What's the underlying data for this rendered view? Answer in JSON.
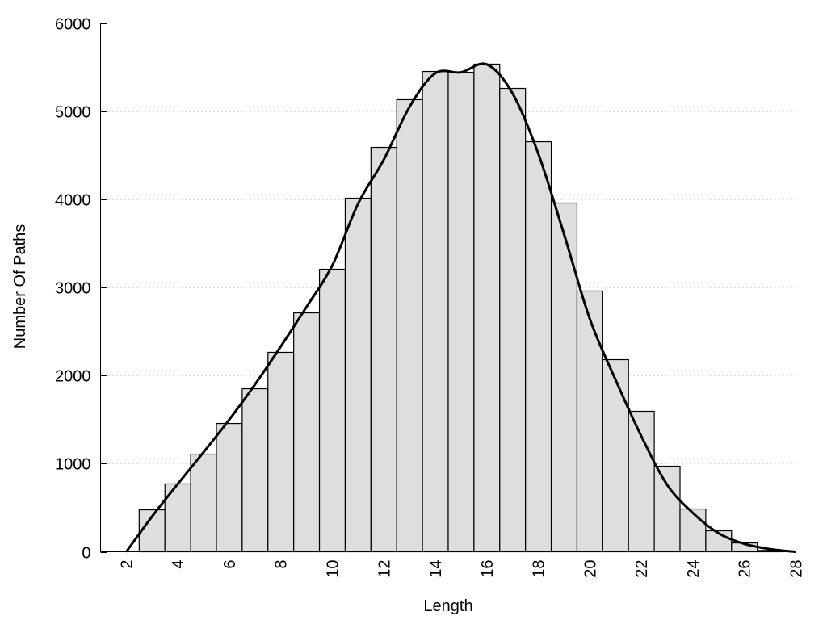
{
  "chart_data": {
    "type": "bar",
    "title": "",
    "xlabel": "Length",
    "ylabel": "Number Of Paths",
    "xlim": [
      1,
      28
    ],
    "ylim": [
      0,
      6000
    ],
    "xticks": [
      2,
      4,
      6,
      8,
      10,
      12,
      14,
      16,
      18,
      20,
      22,
      24,
      26,
      28
    ],
    "yticks": [
      0,
      1000,
      2000,
      3000,
      4000,
      5000,
      6000
    ],
    "grid": "horizontal dotted",
    "bar_color": "#dedede",
    "line_color": "#000000",
    "x": [
      3,
      4,
      5,
      6,
      7,
      8,
      9,
      10,
      11,
      12,
      13,
      14,
      15,
      16,
      17,
      18,
      19,
      20,
      21,
      22,
      23,
      24,
      25,
      26,
      27
    ],
    "values": [
      476,
      770,
      1108,
      1456,
      1850,
      2263,
      2711,
      3206,
      4012,
      4589,
      5130,
      5450,
      5440,
      5533,
      5258,
      4653,
      3957,
      2959,
      2180,
      1594,
      971,
      485,
      238,
      100,
      15
    ],
    "curve": {
      "x": [
        2,
        3,
        4,
        5,
        6,
        7,
        8,
        9,
        10,
        11,
        12,
        13,
        14,
        15,
        16,
        17,
        18,
        19,
        20,
        21,
        22,
        23,
        24,
        25,
        26,
        27,
        28
      ],
      "y": [
        0,
        400,
        770,
        1130,
        1500,
        1900,
        2330,
        2780,
        3250,
        3950,
        4450,
        5050,
        5430,
        5440,
        5530,
        5200,
        4515,
        3600,
        2640,
        1950,
        1310,
        760,
        440,
        210,
        90,
        30,
        0
      ]
    }
  }
}
